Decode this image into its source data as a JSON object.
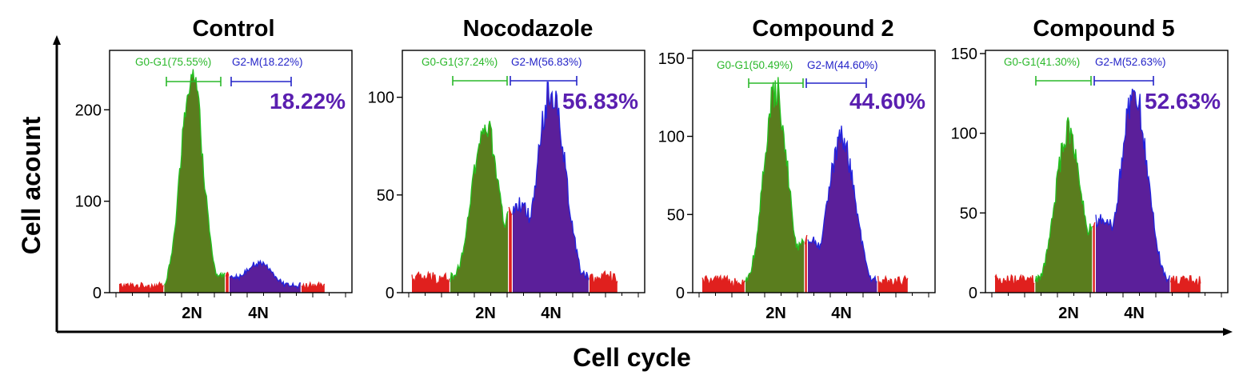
{
  "figure": {
    "y_axis_label": "Cell acount",
    "x_axis_label": "Cell cycle"
  },
  "colors": {
    "g1_fill": "#5a7d1e",
    "g1_line": "#22c01e",
    "g2_fill": "#5b1f9a",
    "g2_line": "#2222dd",
    "debris": "#e0201e",
    "g1_text": "#2ab82a",
    "g2_text": "#2323c8",
    "pct_text": "#5a1fb0"
  },
  "chart_data": [
    {
      "type": "area",
      "title": "Control",
      "xlabel": "Cell cycle",
      "ylabel": "Cell acount",
      "x_tick_labels": [
        "2N",
        "4N"
      ],
      "ylim": [
        0,
        265
      ],
      "yticks": [
        0,
        100,
        200
      ],
      "y_tick_labels": [
        "0",
        "100",
        "200"
      ],
      "g1_gate_label": "G0-G1(75.55%)",
      "g2_gate_label": "G2-M(18.22%)",
      "g2m_percent_label": "18.22%",
      "g1_percent": 75.55,
      "g2m_percent": 18.22,
      "g1_peak": {
        "x": "2N",
        "height": 240,
        "width": 0.3
      },
      "g2_peak": {
        "x": "4N",
        "height": 32,
        "width": 0.45
      },
      "s_level": 22
    },
    {
      "type": "area",
      "title": "Nocodazole",
      "xlabel": "Cell cycle",
      "ylabel": "Cell acount",
      "x_tick_labels": [
        "2N",
        "4N"
      ],
      "ylim": [
        0,
        124
      ],
      "yticks": [
        0,
        50,
        100
      ],
      "y_tick_labels": [
        "0",
        "50",
        "100"
      ],
      "g1_gate_label": "G0-G1(37.24%)",
      "g2_gate_label": "G2-M(56.83%)",
      "g2m_percent_label": "56.83%",
      "g1_percent": 37.24,
      "g2m_percent": 56.83,
      "g1_peak": {
        "x": "2N",
        "height": 85,
        "width": 0.38
      },
      "g2_peak": {
        "x": "4N",
        "height": 103,
        "width": 0.4
      },
      "s_level": 50
    },
    {
      "type": "area",
      "title": "Compound 2",
      "xlabel": "Cell cycle",
      "ylabel": "Cell acount",
      "x_tick_labels": [
        "2N",
        "4N"
      ],
      "ylim": [
        0,
        155
      ],
      "yticks": [
        0,
        50,
        100,
        150
      ],
      "y_tick_labels": [
        "0",
        "50",
        "100",
        "150"
      ],
      "g1_gate_label": "G0-G1(50.49%)",
      "g2_gate_label": "G2-M(44.60%)",
      "g2m_percent_label": "44.60%",
      "g1_percent": 50.49,
      "g2m_percent": 44.6,
      "g1_peak": {
        "x": "2N",
        "height": 130,
        "width": 0.33
      },
      "g2_peak": {
        "x": "4N",
        "height": 98,
        "width": 0.38
      },
      "s_level": 38
    },
    {
      "type": "area",
      "title": "Compound 5",
      "xlabel": "Cell cycle",
      "ylabel": "Cell acount",
      "x_tick_labels": [
        "2N",
        "4N"
      ],
      "ylim": [
        0,
        152
      ],
      "yticks": [
        0,
        50,
        100,
        150
      ],
      "y_tick_labels": [
        "0",
        "50",
        "100",
        "150"
      ],
      "g1_gate_label": "G0-G1(41.30%)",
      "g2_gate_label": "G2-M(52.63%)",
      "g2m_percent_label": "52.63%",
      "g1_percent": 41.3,
      "g2m_percent": 52.63,
      "g1_peak": {
        "x": "2N",
        "height": 102,
        "width": 0.36
      },
      "g2_peak": {
        "x": "4N",
        "height": 125,
        "width": 0.38
      },
      "s_level": 52
    }
  ]
}
